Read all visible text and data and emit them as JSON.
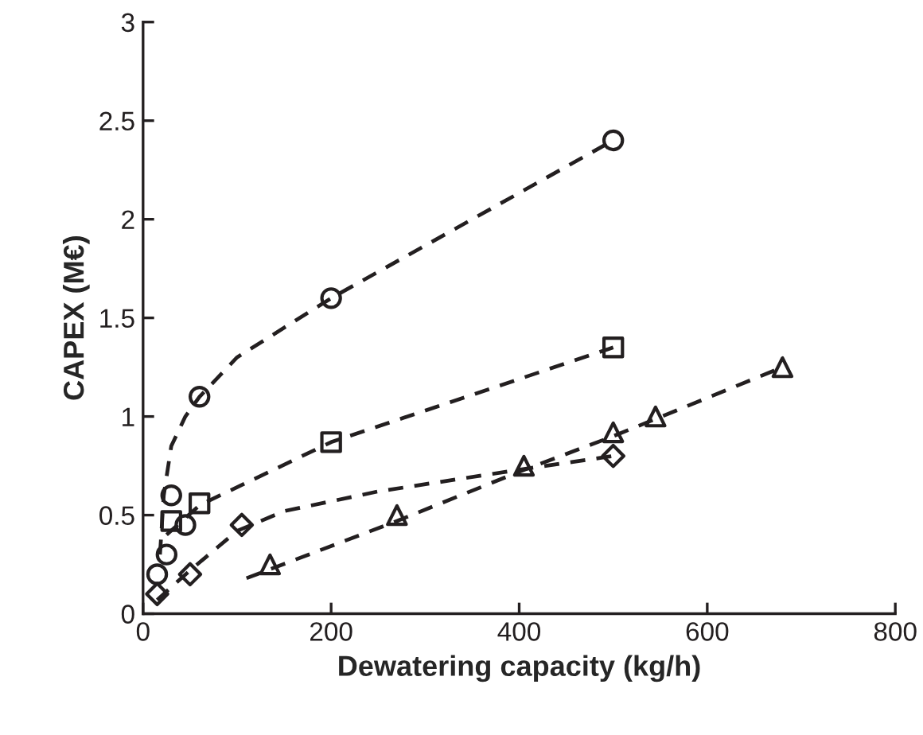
{
  "chart_data": {
    "type": "scatter",
    "xlabel": "Dewatering capacity (kg/h)",
    "ylabel": "CAPEX (M€)",
    "xlim": [
      0,
      800
    ],
    "ylim": [
      0,
      3
    ],
    "xticks": [
      0,
      200,
      400,
      600,
      800
    ],
    "yticks": [
      0,
      0.5,
      1,
      1.5,
      2,
      2.5,
      3
    ],
    "grid": false,
    "legend": false,
    "series": [
      {
        "marker": "circle",
        "color": "#231f20",
        "x": [
          15,
          25,
          30,
          45,
          60,
          200,
          500
        ],
        "values": [
          0.2,
          0.3,
          0.6,
          0.45,
          1.1,
          1.6,
          2.4
        ]
      },
      {
        "marker": "square",
        "color": "#231f20",
        "x": [
          30,
          60,
          200,
          500
        ],
        "values": [
          0.47,
          0.56,
          0.87,
          1.35
        ]
      },
      {
        "marker": "diamond",
        "color": "#231f20",
        "x": [
          15,
          50,
          105,
          500
        ],
        "values": [
          0.1,
          0.2,
          0.45,
          0.8
        ]
      },
      {
        "marker": "triangle",
        "color": "#231f20",
        "x": [
          135,
          270,
          405,
          500,
          545,
          680
        ],
        "values": [
          0.25,
          0.5,
          0.75,
          0.92,
          1.0,
          1.25
        ]
      },
      {
        "type": "line",
        "line_style": "dashed",
        "marker": "none",
        "color": "#231f20",
        "x": [
          18,
          22,
          30,
          45,
          60,
          100,
          200,
          350,
          500
        ],
        "values": [
          0.3,
          0.6,
          0.85,
          1.0,
          1.1,
          1.3,
          1.6,
          2.0,
          2.4
        ]
      },
      {
        "type": "line",
        "line_style": "dashed",
        "marker": "none",
        "color": "#231f20",
        "x": [
          25,
          60,
          200,
          500
        ],
        "values": [
          0.4,
          0.55,
          0.87,
          1.35
        ]
      },
      {
        "type": "line",
        "line_style": "dashed",
        "marker": "none",
        "color": "#231f20",
        "x": [
          15,
          50,
          100,
          150,
          250,
          400,
          500
        ],
        "values": [
          0.07,
          0.22,
          0.42,
          0.52,
          0.62,
          0.73,
          0.8
        ]
      },
      {
        "type": "line",
        "line_style": "dashed",
        "marker": "none",
        "color": "#231f20",
        "x": [
          110,
          270,
          400,
          500,
          680
        ],
        "values": [
          0.18,
          0.47,
          0.72,
          0.9,
          1.25
        ]
      }
    ]
  }
}
